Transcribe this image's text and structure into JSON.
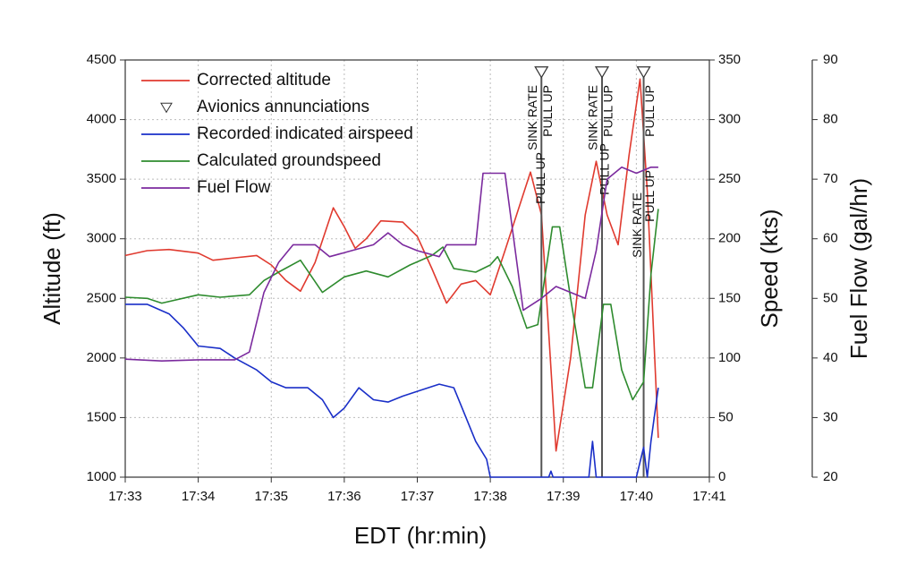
{
  "chart_data": {
    "type": "line",
    "xlabel": "EDT (hr:min)",
    "ylabel": "Altitude (ft)",
    "y2label": "Speed (kts)",
    "y3label": "Fuel Flow (gal/hr)",
    "grid": true,
    "legend": "upper left",
    "xlim": [
      1053,
      1061
    ],
    "xticks": [
      {
        "value": 1053,
        "label": "17:33"
      },
      {
        "value": 1054,
        "label": "17:34"
      },
      {
        "value": 1055,
        "label": "17:35"
      },
      {
        "value": 1056,
        "label": "17:36"
      },
      {
        "value": 1057,
        "label": "17:37"
      },
      {
        "value": 1058,
        "label": "17:38"
      },
      {
        "value": 1059,
        "label": "17:39"
      },
      {
        "value": 1060,
        "label": "17:40"
      },
      {
        "value": 1061,
        "label": "17:41"
      }
    ],
    "ylim": [
      1000,
      4500
    ],
    "yticks": [
      1000,
      1500,
      2000,
      2500,
      3000,
      3500,
      4000,
      4500
    ],
    "y2lim": [
      0,
      350
    ],
    "y2ticks": [
      0,
      50,
      100,
      150,
      200,
      250,
      300,
      350
    ],
    "y3lim": [
      20,
      90
    ],
    "y3ticks": [
      20,
      30,
      40,
      50,
      60,
      70,
      80,
      90
    ],
    "series": [
      {
        "name": "Corrected altitude",
        "color": "#e03a2f",
        "axis": "y",
        "x": [
          1053,
          1053.3,
          1053.6,
          1054.0,
          1054.2,
          1054.5,
          1054.8,
          1055.0,
          1055.2,
          1055.4,
          1055.6,
          1055.85,
          1056.0,
          1056.15,
          1056.3,
          1056.5,
          1056.8,
          1057.0,
          1057.2,
          1057.4,
          1057.6,
          1057.8,
          1058.0,
          1058.2,
          1058.55,
          1058.7,
          1058.9,
          1059.1,
          1059.3,
          1059.45,
          1059.6,
          1059.75,
          1059.9,
          1060.05,
          1060.15,
          1060.3
        ],
        "values": [
          2860,
          2900,
          2910,
          2880,
          2820,
          2840,
          2860,
          2780,
          2650,
          2560,
          2800,
          3260,
          3100,
          2920,
          3000,
          3150,
          3140,
          3020,
          2750,
          2460,
          2620,
          2650,
          2530,
          2900,
          3560,
          3200,
          1220,
          2000,
          3200,
          3650,
          3200,
          2950,
          3700,
          4340,
          3400,
          1330
        ]
      },
      {
        "name": "Avionics annunciations",
        "color": "#333333",
        "axis": "y",
        "marker": "triangle",
        "x": [
          1058.7,
          1059.53,
          1060.1
        ],
        "values": [
          4400,
          4400,
          4400
        ],
        "labels": [
          [
            "SINK RATE",
            "PULL UP",
            "PULL UP"
          ],
          [
            "SINK RATE",
            "PULL UP",
            "PULL UP"
          ],
          [
            "SINK RATE",
            "PULL UP",
            "PULL UP"
          ]
        ]
      },
      {
        "name": "Recorded indicated airspeed",
        "color": "#1a2fc8",
        "axis": "y2",
        "x": [
          1053,
          1053.3,
          1053.6,
          1053.8,
          1054.0,
          1054.3,
          1054.5,
          1054.8,
          1055.0,
          1055.2,
          1055.5,
          1055.7,
          1055.85,
          1056.0,
          1056.2,
          1056.4,
          1056.6,
          1056.8,
          1057.0,
          1057.3,
          1057.5,
          1057.6,
          1057.8,
          1057.95,
          1058.0,
          1058.8,
          1058.83,
          1058.86,
          1059.35,
          1059.4,
          1059.45,
          1060.0,
          1060.1,
          1060.15,
          1060.2,
          1060.3
        ],
        "values": [
          145,
          145,
          137,
          125,
          110,
          108,
          100,
          90,
          80,
          75,
          75,
          65,
          50,
          58,
          75,
          65,
          63,
          68,
          72,
          78,
          75,
          60,
          30,
          15,
          0,
          0,
          5,
          0,
          0,
          30,
          0,
          0,
          25,
          0,
          30,
          75
        ]
      },
      {
        "name": "Calculated groundspeed",
        "color": "#2e8b2e",
        "axis": "y2",
        "x": [
          1053,
          1053.3,
          1053.5,
          1054.0,
          1054.3,
          1054.7,
          1054.9,
          1055.1,
          1055.4,
          1055.7,
          1056.0,
          1056.3,
          1056.6,
          1056.9,
          1057.2,
          1057.35,
          1057.5,
          1057.8,
          1058.0,
          1058.1,
          1058.3,
          1058.5,
          1058.65,
          1058.85,
          1058.95,
          1059.1,
          1059.3,
          1059.4,
          1059.55,
          1059.65,
          1059.8,
          1059.95,
          1060.1,
          1060.2,
          1060.3
        ],
        "values": [
          151,
          150,
          146,
          153,
          151,
          153,
          165,
          172,
          182,
          155,
          168,
          173,
          168,
          178,
          186,
          193,
          175,
          172,
          178,
          185,
          160,
          125,
          128,
          210,
          210,
          150,
          75,
          75,
          145,
          145,
          90,
          65,
          80,
          170,
          225
        ]
      },
      {
        "name": "Fuel Flow",
        "color": "#7b2a9e",
        "axis": "y3",
        "x": [
          1053,
          1053.5,
          1054.0,
          1054.5,
          1054.7,
          1054.9,
          1055.1,
          1055.3,
          1055.6,
          1055.8,
          1056.1,
          1056.4,
          1056.6,
          1056.8,
          1057.0,
          1057.3,
          1057.4,
          1057.8,
          1057.9,
          1058.2,
          1058.45,
          1058.7,
          1058.9,
          1059.1,
          1059.3,
          1059.45,
          1059.6,
          1059.8,
          1060.0,
          1060.2,
          1060.3
        ],
        "values": [
          39.8,
          39.5,
          39.7,
          39.7,
          41,
          51,
          56,
          59,
          59,
          57,
          58,
          59,
          61,
          59,
          58,
          57,
          59,
          59,
          71,
          71,
          48,
          50,
          52,
          51,
          50,
          58,
          70,
          72,
          71,
          72,
          72
        ]
      }
    ]
  }
}
